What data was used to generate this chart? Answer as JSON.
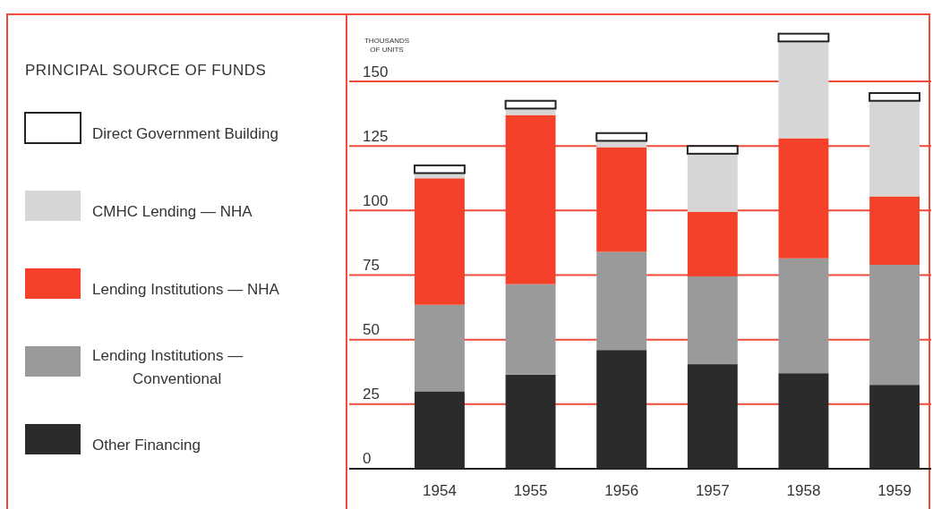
{
  "chart_data": {
    "type": "bar",
    "stacked": true,
    "legend_title": "PRINCIPAL SOURCE OF FUNDS",
    "ylabel": "THOUSANDS OF UNITS",
    "categories": [
      "1954",
      "1955",
      "1956",
      "1957",
      "1958",
      "1959"
    ],
    "series": [
      {
        "name": "Other Financing",
        "color": "#2b2b2b",
        "values": [
          30,
          36.5,
          46,
          40.5,
          37,
          32.5
        ]
      },
      {
        "name": "Lending Institutions — Conventional",
        "color": "#9a9a9a",
        "values": [
          33.5,
          35,
          38,
          34,
          44.5,
          46.5
        ]
      },
      {
        "name": "Lending Institutions — NHA",
        "color": "#f5402a",
        "values": [
          49,
          65.5,
          40.5,
          25,
          46.5,
          26.5
        ]
      },
      {
        "name": "CMHC Lending — NHA",
        "color": "#d6d6d6",
        "values": [
          2,
          2.5,
          2.5,
          22.5,
          37.5,
          37
        ]
      },
      {
        "name": "Direct Government Building",
        "color": "#ffffff",
        "values": [
          3,
          3,
          3,
          3,
          3,
          3
        ]
      }
    ],
    "ylim": [
      0,
      176
    ],
    "yticks": [
      0,
      25,
      50,
      75,
      100,
      125,
      150
    ],
    "grid": "y",
    "legend": "left"
  }
}
